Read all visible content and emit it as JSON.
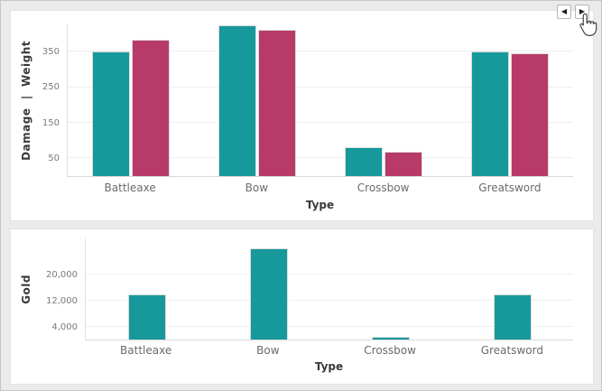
{
  "nav": {
    "prev_icon": "◀",
    "next_icon": "▶"
  },
  "cursor": "hand-pointer",
  "colors": {
    "teal": "#17999B",
    "crimson": "#B83A68",
    "page_background": "#ebebeb",
    "card_background": "#ffffff"
  },
  "chart_data": [
    {
      "type": "bar",
      "categories": [
        "Battleaxe",
        "Bow",
        "Crossbow",
        "Greatsword"
      ],
      "series": [
        {
          "name": "Damage",
          "color": "#17999B",
          "values": [
            352,
            426,
            82,
            352
          ]
        },
        {
          "name": "Weight",
          "color": "#B83A68",
          "values": [
            385,
            411,
            68,
            345
          ]
        }
      ],
      "title": "",
      "xlabel": "Type",
      "ylabel": "Damage  |  Weight",
      "ylim": [
        0,
        430
      ],
      "yticks": [
        {
          "value": 50,
          "label": "50"
        },
        {
          "value": 150,
          "label": "150"
        },
        {
          "value": 250,
          "label": "250"
        },
        {
          "value": 350,
          "label": "350"
        }
      ],
      "grid": true,
      "legend": "none"
    },
    {
      "type": "bar",
      "categories": [
        "Battleaxe",
        "Bow",
        "Crossbow",
        "Greatsword"
      ],
      "series": [
        {
          "name": "Gold",
          "color": "#17999B",
          "values": [
            14000,
            28100,
            800,
            13800
          ]
        }
      ],
      "title": "",
      "xlabel": "Type",
      "ylabel": "Gold",
      "ylim": [
        0,
        31200
      ],
      "yticks": [
        {
          "value": 4000,
          "label": "4,000"
        },
        {
          "value": 12000,
          "label": "12,000"
        },
        {
          "value": 20000,
          "label": "20,000"
        }
      ],
      "grid": true,
      "legend": "none"
    }
  ]
}
